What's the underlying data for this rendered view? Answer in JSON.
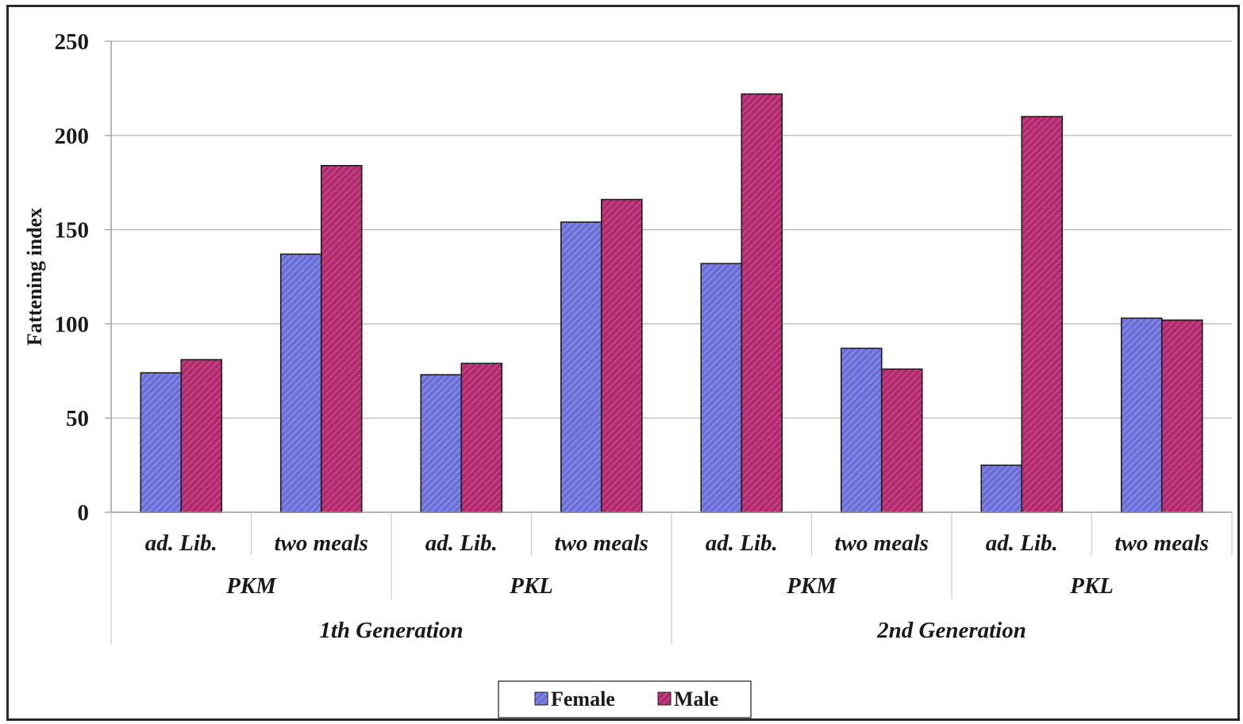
{
  "chart_data": {
    "type": "bar",
    "ylabel": "Fattening index",
    "ylim": [
      0,
      250
    ],
    "yticks": [
      0,
      50,
      100,
      150,
      200,
      250
    ],
    "grid": true,
    "legend_position": "bottom",
    "categories": [
      "ad. Lib.",
      "two meals",
      "ad. Lib.",
      "two meals",
      "ad. Lib.",
      "two meals",
      "ad. Lib.",
      "two meals"
    ],
    "groups_level2": [
      {
        "label": "PKM",
        "span": 2
      },
      {
        "label": "PKL",
        "span": 2
      },
      {
        "label": "PKM",
        "span": 2
      },
      {
        "label": "PKL",
        "span": 2
      }
    ],
    "groups_level3": [
      {
        "label": "1th Generation",
        "span": 4
      },
      {
        "label": "2nd Generation",
        "span": 4
      }
    ],
    "series": [
      {
        "name": "Female",
        "color": "#6b6fd6",
        "values": [
          74,
          137,
          73,
          154,
          132,
          87,
          25,
          103
        ]
      },
      {
        "name": "Male",
        "color": "#b02a6e",
        "values": [
          81,
          184,
          79,
          166,
          222,
          76,
          210,
          102
        ]
      }
    ]
  }
}
